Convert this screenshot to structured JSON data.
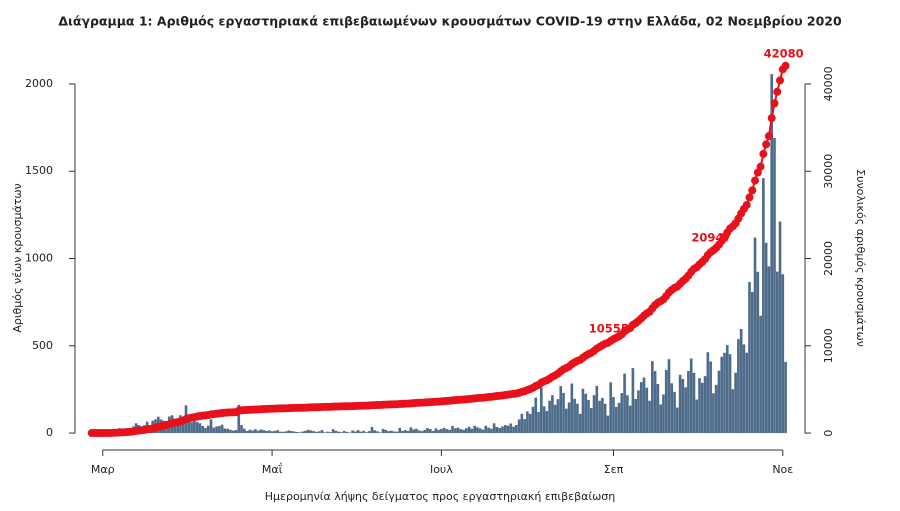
{
  "chart_data": {
    "type": "bar-line",
    "title": "Διάγραμμα 1: Αριθμός εργαστηριακά επιβεβαιωμένων κρουσμάτων COVID-19 στην Ελλάδα, 02 Νοεμβρίου 2020",
    "x_label": "Ημερομηνία λήψης δείγματος προς εργαστηριακή επιβεβαίωση",
    "y_label": "Αριθμός νέων κρουσμάτων",
    "y2_label": "Συνολικός αριθμός κρουσμάτων",
    "xlim": [
      -6,
      257
    ],
    "xticks": [
      {
        "value": 4,
        "label": "Μαρ"
      },
      {
        "value": 65,
        "label": "Μαΐ"
      },
      {
        "value": 126,
        "label": "Ιουλ"
      },
      {
        "value": 188,
        "label": "Σεπ"
      },
      {
        "value": 249,
        "label": "Νοε"
      }
    ],
    "ylim": [
      -97,
      2137
    ],
    "yticks": [
      0,
      500,
      1000,
      1500,
      2000
    ],
    "y2lim": [
      -1940,
      42740
    ],
    "y2ticks": [
      0,
      10000,
      20000,
      30000,
      40000
    ],
    "x": [
      0,
      1,
      2,
      3,
      4,
      5,
      6,
      7,
      8,
      9,
      10,
      11,
      12,
      13,
      14,
      15,
      16,
      17,
      18,
      19,
      20,
      21,
      22,
      23,
      24,
      25,
      26,
      27,
      28,
      29,
      30,
      31,
      32,
      33,
      34,
      35,
      36,
      37,
      38,
      39,
      40,
      41,
      42,
      43,
      44,
      45,
      46,
      47,
      48,
      49,
      50,
      51,
      52,
      53,
      54,
      55,
      56,
      57,
      58,
      59,
      60,
      61,
      62,
      63,
      64,
      65,
      66,
      67,
      68,
      69,
      70,
      71,
      72,
      73,
      74,
      75,
      76,
      77,
      78,
      79,
      80,
      81,
      82,
      83,
      84,
      85,
      86,
      87,
      88,
      89,
      90,
      91,
      92,
      93,
      94,
      95,
      96,
      97,
      98,
      99,
      100,
      101,
      102,
      103,
      104,
      105,
      106,
      107,
      108,
      109,
      110,
      111,
      112,
      113,
      114,
      115,
      116,
      117,
      118,
      119,
      120,
      121,
      122,
      123,
      124,
      125,
      126,
      127,
      128,
      129,
      130,
      131,
      132,
      133,
      134,
      135,
      136,
      137,
      138,
      139,
      140,
      141,
      142,
      143,
      144,
      145,
      146,
      147,
      148,
      149,
      150,
      151,
      152,
      153,
      154,
      155,
      156,
      157,
      158,
      159,
      160,
      161,
      162,
      163,
      164,
      165,
      166,
      167,
      168,
      169,
      170,
      171,
      172,
      173,
      174,
      175,
      176,
      177,
      178,
      179,
      180,
      181,
      182,
      183,
      184,
      185,
      186,
      187,
      188,
      189,
      190,
      191,
      192,
      193,
      194,
      195,
      196,
      197,
      198,
      199,
      200,
      201,
      202,
      203,
      204,
      205,
      206,
      207,
      208,
      209,
      210,
      211,
      212,
      213,
      214,
      215,
      216,
      217,
      218,
      219,
      220,
      221,
      222,
      223,
      224,
      225,
      226,
      227,
      228,
      229,
      230,
      231,
      232,
      233,
      234,
      235,
      236,
      237,
      238,
      239,
      240,
      241,
      242,
      243,
      244,
      245,
      246,
      247,
      248,
      249,
      250
    ],
    "series": [
      {
        "kind": "bar",
        "axis": "y",
        "color": "#4e6b8a",
        "values": [
          1,
          1,
          1,
          0,
          3,
          2,
          2,
          3,
          21,
          7,
          28,
          16,
          15,
          27,
          19,
          38,
          56,
          46,
          35,
          45,
          65,
          31,
          71,
          79,
          94,
          78,
          71,
          69,
          95,
          102,
          73,
          60,
          102,
          87,
          159,
          95,
          62,
          71,
          64,
          56,
          41,
          30,
          42,
          79,
          31,
          38,
          40,
          48,
          26,
          25,
          19,
          14,
          17,
          161,
          46,
          25,
          12,
          19,
          15,
          22,
          14,
          21,
          17,
          12,
          15,
          10,
          13,
          16,
          8,
          7,
          10,
          15,
          12,
          9,
          6,
          4,
          9,
          13,
          19,
          15,
          11,
          7,
          10,
          17,
          4,
          8,
          5,
          22,
          13,
          8,
          5,
          12,
          7,
          3,
          15,
          9,
          17,
          8,
          13,
          5,
          11,
          35,
          16,
          10,
          4,
          24,
          18,
          11,
          14,
          9,
          8,
          29,
          13,
          17,
          12,
          33,
          21,
          25,
          15,
          11,
          19,
          29,
          23,
          12,
          27,
          18,
          24,
          30,
          22,
          19,
          41,
          27,
          31,
          22,
          19,
          28,
          36,
          25,
          41,
          33,
          27,
          20,
          42,
          31,
          25,
          56,
          35,
          29,
          38,
          46,
          42,
          55,
          37,
          46,
          78,
          110,
          80,
          124,
          110,
          150,
          203,
          121,
          262,
          153,
          126,
          185,
          217,
          162,
          194,
          269,
          230,
          140,
          175,
          284,
          196,
          168,
          110,
          254,
          225,
          190,
          143,
          217,
          270,
          185,
          201,
          168,
          100,
          291,
          206,
          150,
          173,
          229,
          340,
          217,
          157,
          372,
          195,
          245,
          292,
          318,
          260,
          185,
          412,
          355,
          281,
          164,
          221,
          362,
          423,
          285,
          236,
          146,
          334,
          310,
          262,
          356,
          427,
          345,
          192,
          314,
          288,
          326,
          463,
          410,
          228,
          276,
          357,
          437,
          460,
          504,
          452,
          251,
          346,
          538,
          596,
          508,
          460,
          865,
          808,
          1120,
          924,
          672,
          1460,
          1090,
          955,
          2056,
          1690,
          925,
          1212,
          910,
          408
        ]
      },
      {
        "kind": "line",
        "axis": "y2",
        "color": "#e8101a",
        "point_labels": [
          187,
          224,
          250
        ],
        "values": [
          1,
          2,
          3,
          3,
          6,
          8,
          10,
          13,
          34,
          41,
          69,
          85,
          100,
          127,
          146,
          184,
          240,
          286,
          321,
          366,
          431,
          462,
          533,
          612,
          706,
          784,
          855,
          924,
          1019,
          1121,
          1194,
          1254,
          1356,
          1443,
          1602,
          1697,
          1759,
          1830,
          1894,
          1950,
          1991,
          2021,
          2063,
          2142,
          2173,
          2211,
          2251,
          2299,
          2325,
          2350,
          2369,
          2383,
          2400,
          2561,
          2607,
          2632,
          2644,
          2663,
          2678,
          2700,
          2714,
          2735,
          2752,
          2764,
          2779,
          2789,
          2802,
          2818,
          2826,
          2833,
          2843,
          2858,
          2870,
          2879,
          2885,
          2889,
          2898,
          2911,
          2930,
          2945,
          2956,
          2963,
          2973,
          2990,
          2994,
          3002,
          3007,
          3029,
          3042,
          3050,
          3055,
          3067,
          3074,
          3077,
          3092,
          3101,
          3118,
          3126,
          3139,
          3144,
          3155,
          3190,
          3206,
          3216,
          3220,
          3244,
          3262,
          3273,
          3287,
          3296,
          3304,
          3333,
          3346,
          3363,
          3375,
          3408,
          3429,
          3454,
          3469,
          3480,
          3499,
          3528,
          3551,
          3563,
          3590,
          3608,
          3632,
          3662,
          3684,
          3703,
          3744,
          3771,
          3802,
          3824,
          3843,
          3871,
          3907,
          3932,
          3973,
          4006,
          4033,
          4053,
          4095,
          4126,
          4151,
          4207,
          4242,
          4271,
          4309,
          4355,
          4397,
          4452,
          4489,
          4535,
          4613,
          4723,
          4803,
          4927,
          5037,
          5187,
          5390,
          5511,
          5773,
          5926,
          6052,
          6237,
          6454,
          6616,
          6810,
          7079,
          7309,
          7449,
          7624,
          7908,
          8104,
          8272,
          8382,
          8636,
          8861,
          9051,
          9194,
          9411,
          9681,
          9866,
          10067,
          10235,
          10335,
          10555,
          10761,
          10911,
          11084,
          11313,
          11653,
          11870,
          12027,
          12399,
          12594,
          12839,
          13131,
          13449,
          13709,
          13894,
          14306,
          14661,
          14942,
          15106,
          15327,
          15689,
          16112,
          16397,
          16633,
          16779,
          17113,
          17423,
          17685,
          18041,
          18468,
          18813,
          19005,
          19319,
          19607,
          19933,
          20396,
          20719,
          20947,
          21223,
          21580,
          22017,
          22477,
          22981,
          23433,
          23684,
          24030,
          24568,
          25164,
          25672,
          26132,
          26997,
          27805,
          28925,
          29849,
          30521,
          31981,
          33071,
          34026,
          36082,
          37772,
          39100,
          40400,
          41672,
          42080
        ]
      }
    ]
  }
}
